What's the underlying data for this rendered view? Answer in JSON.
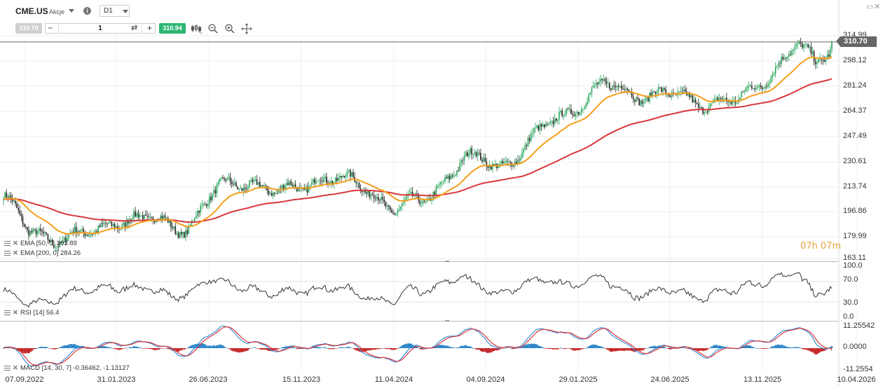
{
  "header": {
    "symbol": "CME.US",
    "instrument_type": "Akcje",
    "info_icon": "info-icon",
    "timeframe": "D1",
    "sell_price": "310.70",
    "quantity": "1",
    "buy_price": "310.94",
    "tools": [
      "candles-icon",
      "zoom-out-icon",
      "zoom-in-icon",
      "crosshair-icon"
    ]
  },
  "price_axis": {
    "labels": [
      "314.99",
      "298.12",
      "281.24",
      "264.37",
      "247.49",
      "230.61",
      "213.74",
      "196.86",
      "179.99",
      "163.11"
    ],
    "current_price": "310.70"
  },
  "time_axis": {
    "labels": [
      "07.09.2022",
      "31.01.2023",
      "26.06.2023",
      "15.11.2023",
      "11.04.2024",
      "04.09.2024",
      "29.01.2025",
      "24.06.2025",
      "13.11.2025",
      "10.04.2026"
    ]
  },
  "countdown": "07h 07m",
  "legends": {
    "ema50": "EMA [50, 0] 303.89",
    "ema200": "EMA [200, 0] 284.26",
    "rsi": "RSI [14] 56.4",
    "macd": "MACD [14, 30, 7] -0.36462, -1.13127"
  },
  "rsi_axis": [
    "100.0",
    "70.0",
    "30.0",
    "0.0"
  ],
  "macd_axis": [
    "11.25542",
    "0.0000",
    "-11.2554"
  ],
  "colors": {
    "up": "#26a65b",
    "down": "#222222",
    "ema50": "#f59e1b",
    "ema200": "#d9373a",
    "macd_line": "#3a8fd9",
    "signal_line": "#d9373a",
    "hist_up": "#2f86c8",
    "hist_down": "#c62828",
    "buy": "#2bb673"
  },
  "chart_data": {
    "type": "candlestick",
    "x_range": [
      "07.09.2022",
      "10.04.2026"
    ],
    "ylim": [
      163.11,
      314.99
    ],
    "close_trend": [
      [
        "07.09.2022",
        205
      ],
      [
        "15.10.2022",
        180
      ],
      [
        "15.12.2022",
        176
      ],
      [
        "31.01.2023",
        178
      ],
      [
        "01.03.2023",
        190
      ],
      [
        "15.04.2023",
        188
      ],
      [
        "26.06.2023",
        184
      ],
      [
        "15.08.2023",
        210
      ],
      [
        "01.10.2023",
        217
      ],
      [
        "15.11.2023",
        204
      ],
      [
        "15.01.2024",
        218
      ],
      [
        "01.03.2024",
        214
      ],
      [
        "11.04.2024",
        210
      ],
      [
        "15.05.2024",
        195
      ],
      [
        "01.07.2024",
        200
      ],
      [
        "15.08.2024",
        222
      ],
      [
        "04.09.2024",
        230
      ],
      [
        "01.11.2024",
        226
      ],
      [
        "15.12.2024",
        240
      ],
      [
        "29.01.2025",
        258
      ],
      [
        "01.03.2025",
        268
      ],
      [
        "15.04.2025",
        280
      ],
      [
        "24.06.2025",
        275
      ],
      [
        "15.08.2025",
        272
      ],
      [
        "01.10.2025",
        270
      ],
      [
        "13.11.2025",
        268
      ],
      [
        "01.01.2026",
        290
      ],
      [
        "15.02.2026",
        308
      ],
      [
        "15.03.2026",
        295
      ],
      [
        "10.04.2026",
        310.7
      ]
    ],
    "ema50_last": 303.89,
    "ema200_last": 284.26,
    "rsi_last": 56.4,
    "rsi_levels": [
      30,
      70
    ],
    "macd_last": -0.36462,
    "signal_last": -1.13127,
    "macd_ylim": [
      -11.2554,
      11.25542
    ]
  }
}
